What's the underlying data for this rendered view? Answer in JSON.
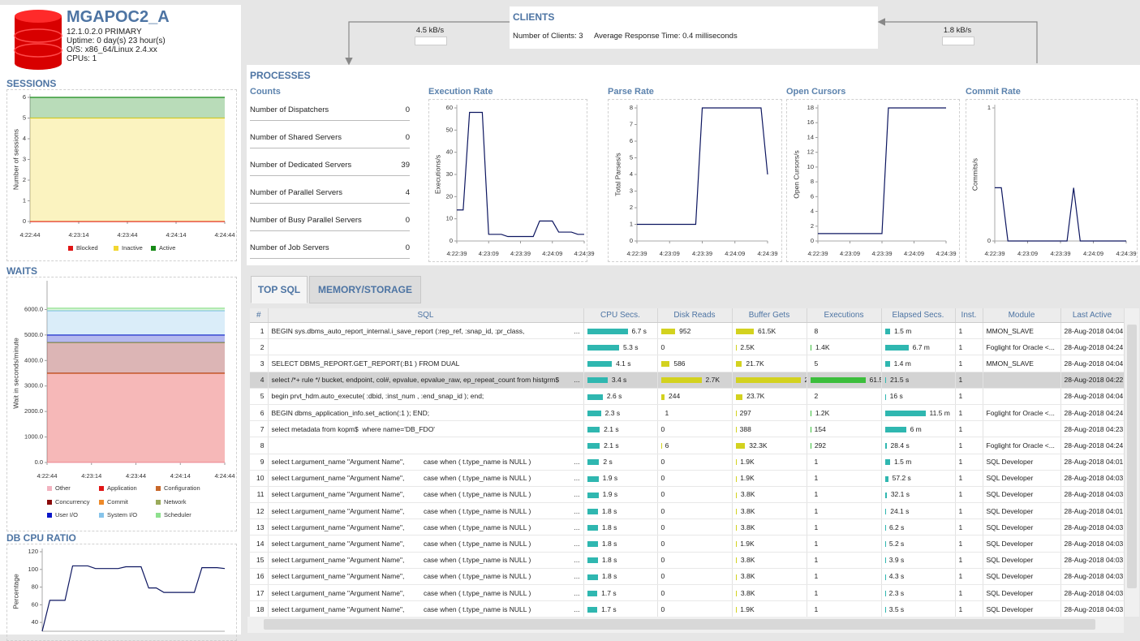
{
  "database": {
    "name": "MGAPOC2_A",
    "details": [
      "12.1.0.2.0 PRIMARY",
      "Uptime: 0 day(s) 23 hour(s)",
      "O/S: x86_64/Linux 2.4.xx",
      "CPUs: 1"
    ]
  },
  "clients": {
    "title": "CLIENTS",
    "count": "Number of Clients: 3",
    "response": "Average Response Time: 0.4 milliseconds",
    "inbound_rate": "4.5 kB/s",
    "outbound_rate": "1.8 kB/s"
  },
  "processes": {
    "title": "PROCESSES",
    "counts_title": "Counts",
    "counts": [
      {
        "label": "Number of Dispatchers",
        "value": 0
      },
      {
        "label": "Number of Shared Servers",
        "value": 0
      },
      {
        "label": "Number of Dedicated Servers",
        "value": 39
      },
      {
        "label": "Number of Parallel Servers",
        "value": 4
      },
      {
        "label": "Number of Busy Parallel Servers",
        "value": 0
      },
      {
        "label": "Number of Job Servers",
        "value": 0
      }
    ]
  },
  "chart_data": [
    {
      "type": "stacked_area",
      "title": "SESSIONS",
      "ylabel": "Number of sessions",
      "x_labels": [
        "4:22:44",
        "4:23:14",
        "4:23:44",
        "4:24:14",
        "4:24:44"
      ],
      "ylim": [
        0,
        6
      ],
      "yticks": [
        0,
        1,
        2,
        3,
        4,
        5,
        6
      ],
      "legend": true,
      "series": [
        {
          "name": "Blocked",
          "color": "#e01515",
          "values": [
            0,
            0,
            0,
            0,
            0
          ]
        },
        {
          "name": "Inactive",
          "color": "#f2d630",
          "values": [
            5,
            5,
            5,
            5,
            5
          ]
        },
        {
          "name": "Active",
          "color": "#178a17",
          "values": [
            1,
            1,
            1,
            1,
            1
          ]
        }
      ]
    },
    {
      "type": "stacked_area",
      "title": "WAITS",
      "ylabel": "Wait in seconds/minute",
      "x_labels": [
        "4:22:44",
        "4:23:14",
        "4:23:44",
        "4:24:14",
        "4:24:44"
      ],
      "ylim": [
        0,
        7000
      ],
      "yticks": [
        {
          "value": 0,
          "label": "0.0"
        },
        {
          "value": 1000,
          "label": "1000.0"
        },
        {
          "value": 2000,
          "label": "2000.0"
        },
        {
          "value": 3000,
          "label": "3000.0"
        },
        {
          "value": 4000,
          "label": "4000.0"
        },
        {
          "value": 5000,
          "label": "5000.0"
        },
        {
          "value": 6000,
          "label": "6000.0"
        }
      ],
      "legend": true,
      "series": [
        {
          "name": "Other",
          "color": "#f2b3c0",
          "values": [
            0,
            0,
            0,
            0,
            0
          ]
        },
        {
          "name": "Application",
          "color": "#e01515",
          "values": [
            3500,
            3500,
            3500,
            3500,
            3500
          ]
        },
        {
          "name": "Configuration",
          "color": "#c8682a",
          "values": [
            0,
            0,
            0,
            0,
            0
          ]
        },
        {
          "name": "Concurrency",
          "color": "#8a0a0a",
          "values": [
            1200,
            1200,
            1200,
            1200,
            1200
          ]
        },
        {
          "name": "Commit",
          "color": "#ee8a2a",
          "values": [
            0,
            0,
            0,
            0,
            0
          ]
        },
        {
          "name": "Network",
          "color": "#9aaa5a",
          "values": [
            0,
            0,
            0,
            0,
            0
          ]
        },
        {
          "name": "User I/O",
          "color": "#0a16c8",
          "values": [
            300,
            300,
            300,
            300,
            300
          ]
        },
        {
          "name": "System I/O",
          "color": "#86c4ea",
          "values": [
            950,
            950,
            950,
            950,
            950
          ]
        },
        {
          "name": "Scheduler",
          "color": "#8ee08e",
          "values": [
            100,
            100,
            100,
            100,
            100
          ]
        }
      ]
    },
    {
      "type": "line",
      "title": "DB CPU RATIO",
      "ylabel": "Percentage",
      "ylim": [
        30,
        120
      ],
      "yticks": [
        40,
        60,
        80,
        100,
        120
      ],
      "series": [
        {
          "color": "#0d1660",
          "values": [
            30,
            65,
            65,
            65,
            104,
            104,
            104,
            101,
            101,
            101,
            101,
            103,
            103,
            103,
            79,
            79,
            74,
            74,
            74,
            74,
            74,
            102,
            102,
            102,
            101
          ]
        }
      ]
    },
    {
      "type": "line",
      "title": "Execution Rate",
      "ylabel": "Executions/s",
      "x_labels": [
        "4:22:39",
        "4:23:09",
        "4:23:39",
        "4:24:09",
        "4:24:39"
      ],
      "ylim": [
        0,
        60
      ],
      "yticks": [
        0,
        10,
        20,
        30,
        40,
        50,
        60
      ],
      "series": [
        {
          "color": "#0d1660",
          "values": [
            14,
            14,
            58,
            58,
            58,
            3,
            3,
            3,
            2,
            2,
            2,
            2,
            2,
            9,
            9,
            9,
            4,
            4,
            4,
            3,
            3
          ]
        }
      ]
    },
    {
      "type": "line",
      "title": "Parse Rate",
      "ylabel": "Total Parses/s",
      "x_labels": [
        "4:22:39",
        "4:23:09",
        "4:23:39",
        "4:24:09",
        "4:24:39"
      ],
      "ylim": [
        0,
        8
      ],
      "yticks": [
        0,
        1,
        2,
        3,
        4,
        5,
        6,
        7,
        8
      ],
      "series": [
        {
          "color": "#0d1660",
          "values": [
            1,
            1,
            1,
            1,
            1,
            1,
            1,
            1,
            1,
            1,
            8,
            8,
            8,
            8,
            8,
            8,
            8,
            8,
            8,
            8,
            4
          ]
        }
      ]
    },
    {
      "type": "line",
      "title": "Open Cursors",
      "ylabel": "Open Cursors/s",
      "x_labels": [
        "4:22:39",
        "4:23:09",
        "4:23:39",
        "4:24:09",
        "4:24:39"
      ],
      "ylim": [
        0,
        18
      ],
      "yticks": [
        0,
        2,
        4,
        6,
        8,
        10,
        12,
        14,
        16,
        18
      ],
      "series": [
        {
          "color": "#0d1660",
          "values": [
            1,
            1,
            1,
            1,
            1,
            1,
            1,
            1,
            1,
            1,
            1,
            18,
            18,
            18,
            18,
            18,
            18,
            18,
            18,
            18,
            18
          ]
        }
      ]
    },
    {
      "type": "line",
      "title": "Commit Rate",
      "ylabel": "Commits/s",
      "x_labels": [
        "4:22:39",
        "4:23:09",
        "4:23:39",
        "4:24:09",
        "4:24:39"
      ],
      "ylim": [
        0,
        1
      ],
      "yticks": [
        0,
        1
      ],
      "series": [
        {
          "color": "#0d1660",
          "values": [
            0.4,
            0.4,
            0,
            0,
            0,
            0,
            0,
            0,
            0,
            0,
            0,
            0,
            0.4,
            0,
            0,
            0,
            0,
            0,
            0,
            0,
            0
          ]
        }
      ]
    }
  ],
  "tabs": [
    "TOP SQL",
    "MEMORY/STORAGE"
  ],
  "table": {
    "columns": [
      "#",
      "SQL",
      "CPU Secs.",
      "Disk Reads",
      "Buffer Gets",
      "Executions",
      "Elapsed Secs.",
      "Inst.",
      "Module",
      "Last Active"
    ],
    "rows": [
      {
        "n": 1,
        "sql": "BEGIN sys.dbms_auto_report_internal.i_save_report (:rep_ref, :snap_id, :pr_class,",
        "more": "...",
        "cpu": {
          "value": 6.7,
          "label": "6.7 s"
        },
        "disk": 952,
        "buffer": {
          "value": 61500,
          "label": "61.5K"
        },
        "exec": 8,
        "elapsed": {
          "value": 90,
          "label": "1.5 m"
        },
        "inst": 1,
        "module": "MMON_SLAVE",
        "last": "28-Aug-2018 04:04"
      },
      {
        "n": 2,
        "cpu": {
          "value": 5.3,
          "label": "5.3 s"
        },
        "disk": 0,
        "buffer": {
          "value": 2500,
          "label": "2.5K"
        },
        "exec": {
          "value": 1400,
          "label": "1.4K"
        },
        "elapsed": {
          "value": 402,
          "label": "6.7 m"
        },
        "inst": 1,
        "module": "Foglight for Oracle <...",
        "last": "28-Aug-2018 04:24"
      },
      {
        "n": 3,
        "sql": "SELECT DBMS_REPORT.GET_REPORT(:B1 ) FROM DUAL",
        "cpu": {
          "value": 4.1,
          "label": "4.1 s"
        },
        "disk": 586,
        "buffer": {
          "value": 21700,
          "label": "21.7K"
        },
        "exec": 5,
        "elapsed": {
          "value": 84,
          "label": "1.4 m"
        },
        "inst": 1,
        "module": "MMON_SLAVE",
        "last": "28-Aug-2018 04:04"
      },
      {
        "n": 4,
        "sql": "select /*+ rule */ bucket, endpoint, col#, epvalue, epvalue_raw, ep_repeat_count from histgrm$",
        "more": "...",
        "cpu": {
          "value": 3.4,
          "label": "3.4 s"
        },
        "disk": {
          "value": 2700,
          "label": "2.7K"
        },
        "buffer": {
          "value": 219200,
          "label": "219.2K"
        },
        "exec": {
          "value": 61500,
          "label": "61.5K"
        },
        "elapsed": {
          "value": 21.5,
          "label": "21.5 s"
        },
        "inst": 1,
        "last": "28-Aug-2018 04:22"
      },
      {
        "n": 5,
        "sql": "begin prvt_hdm.auto_execute( :dbid, :inst_num , :end_snap_id ); end;",
        "cpu": {
          "value": 2.6,
          "label": "2.6 s"
        },
        "disk": 244,
        "buffer": {
          "value": 23700,
          "label": "23.7K"
        },
        "exec": 2,
        "elapsed": {
          "value": 16,
          "label": "16 s"
        },
        "inst": 1,
        "last": "28-Aug-2018 04:04"
      },
      {
        "n": 6,
        "sql": "BEGIN dbms_application_info.set_action(:1 ); END;",
        "cpu": {
          "value": 2.3,
          "label": "2.3 s"
        },
        "disk": 1,
        "buffer": 297,
        "exec": {
          "value": 1200,
          "label": "1.2K"
        },
        "elapsed": {
          "value": 690,
          "label": "11.5 m"
        },
        "inst": 1,
        "module": "Foglight for Oracle <...",
        "last": "28-Aug-2018 04:24"
      },
      {
        "n": 7,
        "sql": "select metadata from kopm$  where name='DB_FDO'",
        "cpu": {
          "value": 2.1,
          "label": "2.1 s"
        },
        "disk": 0,
        "buffer": 388,
        "exec": 154,
        "elapsed": {
          "value": 360,
          "label": "6 m"
        },
        "inst": 1,
        "last": "28-Aug-2018 04:23"
      },
      {
        "n": 8,
        "cpu": {
          "value": 2.1,
          "label": "2.1 s"
        },
        "disk": 6,
        "buffer": {
          "value": 32300,
          "label": "32.3K"
        },
        "exec": 292,
        "elapsed": {
          "value": 28.4,
          "label": "28.4 s"
        },
        "inst": 1,
        "module": "Foglight for Oracle <...",
        "last": "28-Aug-2018 04:24"
      },
      {
        "n": 9,
        "sql": "select t.argument_name \"Argument Name\",          case when ( t.type_name is NULL )",
        "more": "...",
        "cpu": {
          "value": 2,
          "label": "2 s"
        },
        "disk": 0,
        "buffer": {
          "value": 1900,
          "label": "1.9K"
        },
        "exec": 1,
        "elapsed": {
          "value": 90,
          "label": "1.5 m"
        },
        "inst": 1,
        "module": "SQL Developer",
        "last": "28-Aug-2018 04:01"
      },
      {
        "n": 10,
        "sql": "select t.argument_name \"Argument Name\",          case when ( t.type_name is NULL )",
        "more": "...",
        "cpu": {
          "value": 1.9,
          "label": "1.9 s"
        },
        "disk": 0,
        "buffer": {
          "value": 1900,
          "label": "1.9K"
        },
        "exec": 1,
        "elapsed": {
          "value": 57.2,
          "label": "57.2 s"
        },
        "inst": 1,
        "module": "SQL Developer",
        "last": "28-Aug-2018 04:03"
      },
      {
        "n": 11,
        "sql": "select t.argument_name \"Argument Name\",          case when ( t.type_name is NULL )",
        "more": "...",
        "cpu": {
          "value": 1.9,
          "label": "1.9 s"
        },
        "disk": 0,
        "buffer": {
          "value": 3800,
          "label": "3.8K"
        },
        "exec": 1,
        "elapsed": {
          "value": 32.1,
          "label": "32.1 s"
        },
        "inst": 1,
        "module": "SQL Developer",
        "last": "28-Aug-2018 04:03"
      },
      {
        "n": 12,
        "sql": "select t.argument_name \"Argument Name\",          case when ( t.type_name is NULL )",
        "more": "...",
        "cpu": {
          "value": 1.8,
          "label": "1.8 s"
        },
        "disk": 0,
        "buffer": {
          "value": 3800,
          "label": "3.8K"
        },
        "exec": 1,
        "elapsed": {
          "value": 24.1,
          "label": "24.1 s"
        },
        "inst": 1,
        "module": "SQL Developer",
        "last": "28-Aug-2018 04:01"
      },
      {
        "n": 13,
        "sql": "select t.argument_name \"Argument Name\",          case when ( t.type_name is NULL )",
        "more": "...",
        "cpu": {
          "value": 1.8,
          "label": "1.8 s"
        },
        "disk": 0,
        "buffer": {
          "value": 3800,
          "label": "3.8K"
        },
        "exec": 1,
        "elapsed": {
          "value": 6.2,
          "label": "6.2 s"
        },
        "inst": 1,
        "module": "SQL Developer",
        "last": "28-Aug-2018 04:03"
      },
      {
        "n": 14,
        "sql": "select t.argument_name \"Argument Name\",          case when ( t.type_name is NULL )",
        "more": "...",
        "cpu": {
          "value": 1.8,
          "label": "1.8 s"
        },
        "disk": 0,
        "buffer": {
          "value": 1900,
          "label": "1.9K"
        },
        "exec": 1,
        "elapsed": {
          "value": 5.2,
          "label": "5.2 s"
        },
        "inst": 1,
        "module": "SQL Developer",
        "last": "28-Aug-2018 04:03"
      },
      {
        "n": 15,
        "sql": "select t.argument_name \"Argument Name\",          case when ( t.type_name is NULL )",
        "more": "...",
        "cpu": {
          "value": 1.8,
          "label": "1.8 s"
        },
        "disk": 0,
        "buffer": {
          "value": 3800,
          "label": "3.8K"
        },
        "exec": 1,
        "elapsed": {
          "value": 3.9,
          "label": "3.9 s"
        },
        "inst": 1,
        "module": "SQL Developer",
        "last": "28-Aug-2018 04:03"
      },
      {
        "n": 16,
        "sql": "select t.argument_name \"Argument Name\",          case when ( t.type_name is NULL )",
        "more": "...",
        "cpu": {
          "value": 1.8,
          "label": "1.8 s"
        },
        "disk": 0,
        "buffer": {
          "value": 3800,
          "label": "3.8K"
        },
        "exec": 1,
        "elapsed": {
          "value": 4.3,
          "label": "4.3 s"
        },
        "inst": 1,
        "module": "SQL Developer",
        "last": "28-Aug-2018 04:03"
      },
      {
        "n": 17,
        "sql": "select t.argument_name \"Argument Name\",          case when ( t.type_name is NULL )",
        "more": "...",
        "cpu": {
          "value": 1.7,
          "label": "1.7 s"
        },
        "disk": 0,
        "buffer": {
          "value": 3800,
          "label": "3.8K"
        },
        "exec": 1,
        "elapsed": {
          "value": 2.3,
          "label": "2.3 s"
        },
        "inst": 1,
        "module": "SQL Developer",
        "last": "28-Aug-2018 04:03"
      },
      {
        "n": 18,
        "sql": "select t.argument_name \"Argument Name\",          case when ( t.type_name is NULL )",
        "more": "...",
        "cpu": {
          "value": 1.7,
          "label": "1.7 s"
        },
        "disk": 0,
        "buffer": {
          "value": 1900,
          "label": "1.9K"
        },
        "exec": 1,
        "elapsed": {
          "value": 3.5,
          "label": "3.5 s"
        },
        "inst": 1,
        "module": "SQL Developer",
        "last": "28-Aug-2018 04:03"
      }
    ]
  }
}
